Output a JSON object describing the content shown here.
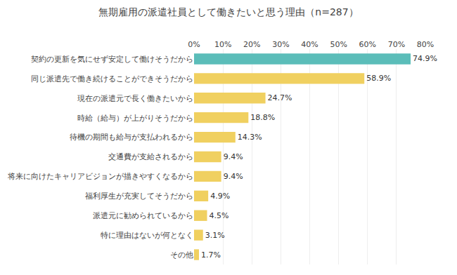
{
  "chart_data": {
    "type": "bar",
    "orientation": "horizontal",
    "title": "無期雇用の派遣社員として働きたいと思う理由（n=287）",
    "categories": [
      "契約の更新を気にせず安定して働けそうだから",
      "同じ派遣先で働き続けることができそうだから",
      "現在の派遣元で長く働きたいから",
      "時給（給与）が上がりそうだから",
      "待機の期間も給与が支払われるから",
      "交通費が支給されるから",
      "将来に向けたキャリアビジョンが描きやすくなるから",
      "福利厚生が充実してそうだから",
      "派遣元に勧められているから",
      "特に理由はないが何となく",
      "その他"
    ],
    "values": [
      74.9,
      58.9,
      24.7,
      18.8,
      14.3,
      9.4,
      9.4,
      4.9,
      4.5,
      3.1,
      1.7
    ],
    "value_labels": [
      "74.9%",
      "58.9%",
      "24.7%",
      "18.8%",
      "14.3%",
      "9.4%",
      "9.4%",
      "4.9%",
      "4.5%",
      "3.1%",
      "1.7%"
    ],
    "data_labels": true,
    "colors": [
      "#5bbdb9",
      "#f0d060",
      "#f0d060",
      "#f0d060",
      "#f0d060",
      "#f0d060",
      "#f0d060",
      "#f0d060",
      "#f0d060",
      "#f0d060",
      "#f0d060"
    ],
    "xlim": [
      0,
      80
    ],
    "xticks": [
      {
        "value": 0,
        "label": "0%"
      },
      {
        "value": 10,
        "label": "10%"
      },
      {
        "value": 20,
        "label": "20%"
      },
      {
        "value": 30,
        "label": "30%"
      },
      {
        "value": 40,
        "label": "40%"
      },
      {
        "value": 50,
        "label": "50%"
      },
      {
        "value": 60,
        "label": "60%"
      },
      {
        "value": 70,
        "label": "70%"
      },
      {
        "value": 80,
        "label": "80%"
      }
    ],
    "grid": true
  }
}
